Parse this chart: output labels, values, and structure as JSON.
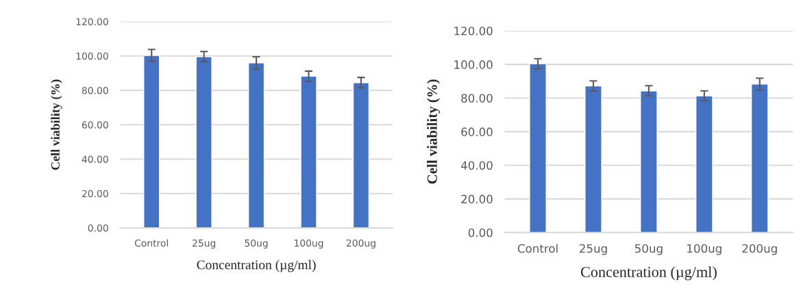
{
  "chart_data": [
    {
      "type": "bar",
      "categories": [
        "Control",
        "25ug",
        "50ug",
        "100ug",
        "200ug"
      ],
      "xlabel": "Concentration (µg/ml)",
      "ylabel": "Cell viability (%)",
      "color": "#4472c4",
      "values": [
        100.3,
        99.6,
        96.0,
        88.2,
        84.5
      ],
      "errors": [
        3.5,
        3.0,
        3.5,
        3.0,
        3.0
      ],
      "ylim": [
        0,
        120
      ],
      "yticks": [
        {
          "value": 0,
          "label": "0.00"
        },
        {
          "value": 20,
          "label": "20.00"
        },
        {
          "value": 40,
          "label": "40.00"
        },
        {
          "value": 60,
          "label": "60.00"
        },
        {
          "value": 80,
          "label": "80.00"
        },
        {
          "value": 100,
          "label": "100.00"
        },
        {
          "value": 120,
          "label": "120.00"
        }
      ],
      "grid": "y"
    },
    {
      "type": "bar",
      "categories": [
        "Control",
        "25ug",
        "50ug",
        "100ug",
        "200ug"
      ],
      "xlabel": "Concentration (µg/ml)",
      "ylabel": "Cell viability (%)",
      "color": "#4472c4",
      "values": [
        100.4,
        87.2,
        84.3,
        81.3,
        88.3
      ],
      "errors": [
        3.0,
        3.0,
        3.0,
        3.0,
        3.5
      ],
      "ylim": [
        0,
        120
      ],
      "yticks": [
        {
          "value": 0,
          "label": "0.00"
        },
        {
          "value": 20,
          "label": "20.00"
        },
        {
          "value": 40,
          "label": "40.00"
        },
        {
          "value": 60,
          "label": "60.00"
        },
        {
          "value": 80,
          "label": "80.00"
        },
        {
          "value": 100,
          "label": "100.00"
        },
        {
          "value": 120,
          "label": "120.00"
        }
      ],
      "grid": "y"
    }
  ]
}
